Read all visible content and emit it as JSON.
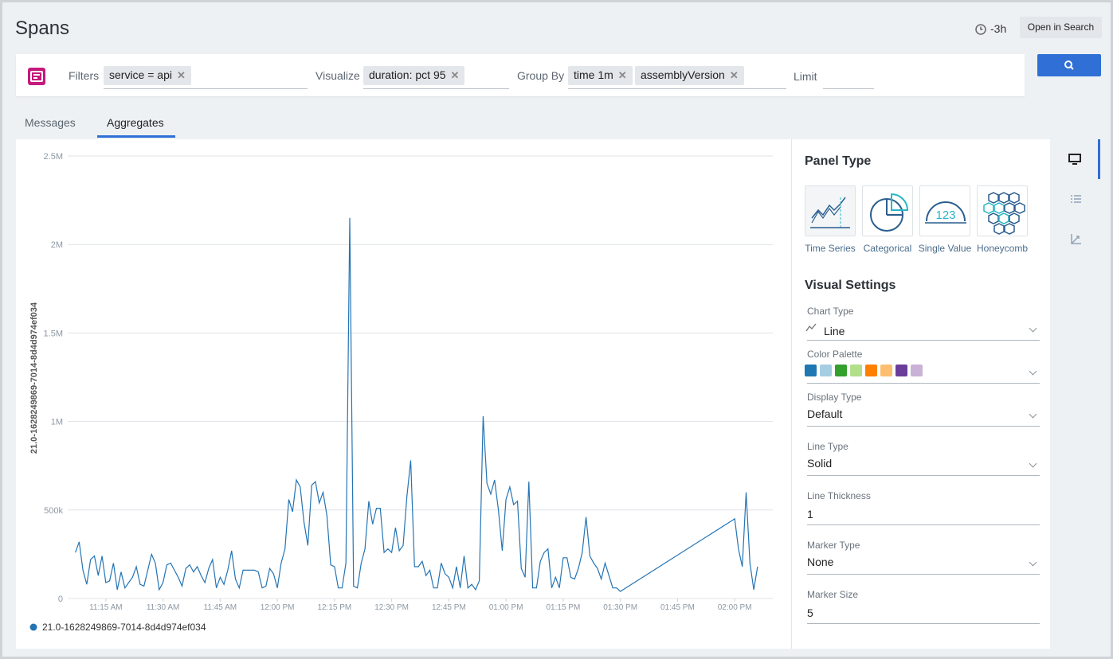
{
  "header": {
    "title": "Spans",
    "time_range": "-3h",
    "open_button": "Open in Search"
  },
  "query": {
    "filters_label": "Filters",
    "filters": [
      "service = api"
    ],
    "visualize_label": "Visualize",
    "visualize": [
      "duration: pct 95"
    ],
    "group_by_label": "Group By",
    "group_by": [
      "time 1m",
      "assemblyVersion"
    ],
    "limit_label": "Limit"
  },
  "tabs": [
    "Messages",
    "Aggregates"
  ],
  "chart_data": {
    "type": "line",
    "ylabel": "21.0-1628249869-7014-8d4d974ef034",
    "x": [
      "11:07 AM",
      "11:08 AM",
      "11:09 AM",
      "11:10 AM",
      "11:11 AM",
      "11:12 AM",
      "11:13 AM",
      "11:14 AM",
      "11:15 AM",
      "11:16 AM",
      "11:17 AM",
      "11:18 AM",
      "11:19 AM",
      "11:20 AM",
      "11:21 AM",
      "11:22 AM",
      "11:23 AM",
      "11:24 AM",
      "11:25 AM",
      "11:26 AM",
      "11:27 AM",
      "11:28 AM",
      "11:29 AM",
      "11:30 AM",
      "11:31 AM",
      "11:32 AM",
      "11:33 AM",
      "11:34 AM",
      "11:35 AM",
      "11:36 AM",
      "11:37 AM",
      "11:38 AM",
      "11:39 AM",
      "11:40 AM",
      "11:41 AM",
      "11:42 AM",
      "11:43 AM",
      "11:44 AM",
      "11:45 AM",
      "11:46 AM",
      "11:47 AM",
      "11:48 AM",
      "11:49 AM",
      "11:50 AM",
      "11:51 AM",
      "11:52 AM",
      "11:53 AM",
      "11:54 AM",
      "11:55 AM",
      "11:56 AM",
      "11:57 AM",
      "11:58 AM",
      "11:59 AM",
      "12:00 PM",
      "12:01 PM",
      "12:02 PM",
      "12:03 PM",
      "12:04 PM",
      "12:05 PM",
      "12:06 PM",
      "12:07 PM",
      "12:08 PM",
      "12:09 PM",
      "12:10 PM",
      "12:11 PM",
      "12:12 PM",
      "12:13 PM",
      "12:14 PM",
      "12:15 PM",
      "12:16 PM",
      "12:17 PM",
      "12:18 PM",
      "12:19 PM",
      "12:20 PM",
      "12:21 PM",
      "12:22 PM",
      "12:23 PM",
      "12:24 PM",
      "12:25 PM",
      "12:26 PM",
      "12:27 PM",
      "12:28 PM",
      "12:29 PM",
      "12:30 PM",
      "12:31 PM",
      "12:32 PM",
      "12:33 PM",
      "12:34 PM",
      "12:35 PM",
      "12:36 PM",
      "12:37 PM",
      "12:38 PM",
      "12:39 PM",
      "12:40 PM",
      "12:41 PM",
      "12:42 PM",
      "12:43 PM",
      "12:44 PM",
      "12:45 PM",
      "12:46 PM",
      "12:47 PM",
      "12:48 PM",
      "12:49 PM",
      "12:50 PM",
      "12:51 PM",
      "12:52 PM",
      "12:53 PM",
      "12:54 PM",
      "12:55 PM",
      "12:56 PM",
      "12:57 PM",
      "12:58 PM",
      "12:59 PM",
      "01:00 PM",
      "01:01 PM",
      "01:02 PM",
      "01:03 PM",
      "01:04 PM",
      "01:05 PM",
      "01:06 PM",
      "01:07 PM",
      "01:08 PM",
      "01:09 PM",
      "01:10 PM",
      "01:11 PM",
      "01:12 PM",
      "01:13 PM",
      "01:14 PM",
      "01:15 PM",
      "01:16 PM",
      "01:17 PM",
      "01:18 PM",
      "01:19 PM",
      "01:20 PM",
      "01:21 PM",
      "01:22 PM",
      "01:23 PM",
      "01:24 PM",
      "01:25 PM",
      "01:26 PM",
      "01:27 PM",
      "01:28 PM",
      "01:29 PM",
      "01:30 PM",
      "02:00 PM",
      "02:01 PM",
      "02:02 PM",
      "02:03 PM",
      "02:04 PM",
      "02:05 PM",
      "02:06 PM"
    ],
    "series": [
      {
        "name": "21.0-1628249869-7014-8d4d974ef034",
        "color": "#2474b4",
        "values": [
          260000,
          320000,
          160000,
          80000,
          220000,
          240000,
          130000,
          240000,
          90000,
          100000,
          200000,
          50000,
          150000,
          60000,
          90000,
          120000,
          180000,
          80000,
          70000,
          160000,
          250000,
          200000,
          50000,
          90000,
          190000,
          200000,
          160000,
          120000,
          70000,
          170000,
          190000,
          150000,
          180000,
          130000,
          90000,
          170000,
          220000,
          60000,
          120000,
          80000,
          160000,
          270000,
          110000,
          60000,
          160000,
          160000,
          160000,
          160000,
          150000,
          60000,
          70000,
          170000,
          140000,
          60000,
          200000,
          280000,
          560000,
          490000,
          670000,
          630000,
          430000,
          300000,
          640000,
          660000,
          540000,
          600000,
          470000,
          190000,
          180000,
          60000,
          60000,
          200000,
          2150000,
          70000,
          60000,
          200000,
          280000,
          550000,
          420000,
          510000,
          510000,
          260000,
          280000,
          260000,
          400000,
          270000,
          300000,
          580000,
          780000,
          180000,
          180000,
          210000,
          130000,
          160000,
          60000,
          60000,
          200000,
          140000,
          120000,
          60000,
          180000,
          60000,
          240000,
          60000,
          80000,
          50000,
          100000,
          1030000,
          650000,
          590000,
          670000,
          500000,
          270000,
          560000,
          630000,
          530000,
          550000,
          170000,
          120000,
          660000,
          60000,
          60000,
          210000,
          260000,
          280000,
          60000,
          120000,
          60000,
          230000,
          230000,
          120000,
          110000,
          170000,
          260000,
          460000,
          240000,
          200000,
          170000,
          110000,
          200000,
          130000,
          60000,
          60000,
          40000,
          450000,
          280000,
          180000,
          600000,
          200000,
          50000,
          180000
        ]
      }
    ],
    "xlim": [
      "11:05 AM",
      "02:10 PM"
    ],
    "xticks": [
      "11:15 AM",
      "11:30 AM",
      "11:45 AM",
      "12:00 PM",
      "12:15 PM",
      "12:30 PM",
      "12:45 PM",
      "01:00 PM",
      "01:15 PM",
      "01:30 PM",
      "01:45 PM",
      "02:00 PM"
    ],
    "ylim": [
      0,
      2500000
    ],
    "yticks": [
      0,
      {
        "value": 500000,
        "label": "500k"
      },
      {
        "value": 1000000,
        "label": "1M"
      },
      {
        "value": 1500000,
        "label": "1.5M"
      },
      {
        "value": 2000000,
        "label": "2M"
      },
      {
        "value": 2500000,
        "label": "2.5M"
      }
    ],
    "grid": true,
    "legend": "bottom-left"
  },
  "panel": {
    "title": "Panel Type",
    "types": [
      "Time Series",
      "Categorical",
      "Single Value",
      "Honeycomb"
    ],
    "settings_title": "Visual Settings",
    "chart_type_label": "Chart Type",
    "chart_type": "Line",
    "palette_label": "Color Palette",
    "palette": [
      "#1f77b4",
      "#a6cee3",
      "#33a02c",
      "#b2df8a",
      "#ff7f00",
      "#fdbf6f",
      "#6a3d9a",
      "#cab2d6"
    ],
    "display_type_label": "Display Type",
    "display_type": "Default",
    "line_type_label": "Line Type",
    "line_type": "Solid",
    "line_thickness_label": "Line Thickness",
    "line_thickness": 1,
    "marker_type_label": "Marker Type",
    "marker_type": "None",
    "marker_size_label": "Marker Size",
    "marker_size": 5
  }
}
